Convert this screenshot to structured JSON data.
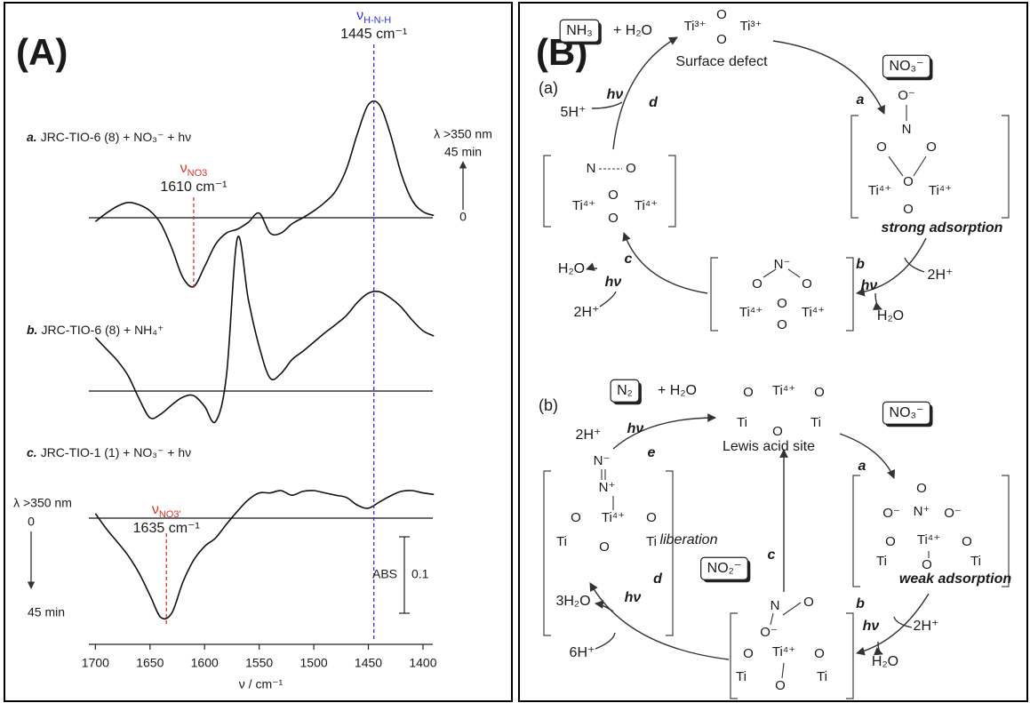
{
  "panel_labels": {
    "a": "(A)",
    "b": "(B)"
  },
  "chart_data": {
    "type": "line",
    "x": [
      1700,
      1690,
      1680,
      1670,
      1660,
      1650,
      1640,
      1630,
      1620,
      1610,
      1600,
      1590,
      1580,
      1570,
      1560,
      1550,
      1540,
      1530,
      1520,
      1510,
      1500,
      1490,
      1480,
      1470,
      1460,
      1450,
      1440,
      1430,
      1420,
      1410,
      1400,
      1390
    ],
    "xlim": [
      1706,
      1391
    ],
    "xticks": [
      1700,
      1650,
      1600,
      1550,
      1500,
      1450,
      1400
    ],
    "xlabel": "ν / cm⁻¹",
    "series": [
      {
        "letter": "a.",
        "name": "JRC-TIO-6 (8) + NO₃⁻ + hν",
        "color": "#111111",
        "values": [
          -0.005,
          0.006,
          0.015,
          0.02,
          0.017,
          0.009,
          -0.008,
          -0.04,
          -0.078,
          -0.09,
          -0.064,
          -0.035,
          -0.02,
          -0.015,
          -0.006,
          0.006,
          -0.02,
          -0.02,
          -0.008,
          0,
          0.009,
          0.02,
          0.035,
          0.064,
          0.11,
          0.148,
          0.148,
          0.11,
          0.058,
          0.023,
          0.008,
          0.003
        ]
      },
      {
        "letter": "b.",
        "name": "JRC-TIO-6 (8) + NH₄⁺",
        "color": "#111111",
        "values": [
          0.07,
          0.055,
          0.04,
          0.02,
          -0.01,
          -0.035,
          -0.03,
          -0.018,
          -0.008,
          -0.006,
          -0.02,
          -0.04,
          0.02,
          0.2,
          0.12,
          0.058,
          0.017,
          0.023,
          0.041,
          0.052,
          0.064,
          0.076,
          0.087,
          0.099,
          0.116,
          0.128,
          0.13,
          0.122,
          0.11,
          0.093,
          0.079,
          0.072
        ]
      },
      {
        "letter": "c.",
        "name": "JRC-TIO-1 (1) + NO₃⁻ + hν",
        "color": "#111111",
        "values": [
          0.006,
          -0.014,
          -0.031,
          -0.049,
          -0.072,
          -0.101,
          -0.13,
          -0.124,
          -0.084,
          -0.055,
          -0.037,
          -0.026,
          -0.008,
          0.009,
          0.024,
          0.033,
          0.033,
          0.036,
          0.03,
          0.035,
          0.036,
          0.033,
          0.03,
          0.027,
          0.017,
          0.013,
          0.021,
          0.029,
          0.035,
          0.036,
          0.033,
          0.031
        ]
      }
    ],
    "markers": [
      {
        "symbol": "ν",
        "sub": "NO3",
        "text": "1610 cm⁻¹",
        "value": 1610,
        "color": "#e0302a"
      },
      {
        "symbol": "ν",
        "sub": "NO3'",
        "text": "1635 cm⁻¹",
        "value": 1635,
        "color": "#e0302a"
      },
      {
        "symbol": "ν",
        "sub": "H-N-H",
        "text": "1445 cm⁻¹",
        "value": 1445,
        "color": "#3535d8"
      }
    ],
    "scale_bar": {
      "label": "ABS",
      "value": 0.1
    },
    "time_arrows": [
      {
        "lambda": "λ >350 nm",
        "time": "45 min",
        "start": "0"
      },
      {
        "lambda": "λ >350 nm",
        "time": "45 min",
        "start": "0"
      }
    ]
  },
  "panel_b": {
    "cycle_a": {
      "label": "(a)",
      "product": "NH₃",
      "product_rest": "+ H₂O",
      "reactant": "NO₃⁻",
      "site": {
        "atoms": [
          "Ti³⁺",
          "O",
          "O",
          "Ti³⁺"
        ],
        "label": "Surface defect"
      },
      "intermediate_1": {
        "atoms": [
          "O⁻",
          "N",
          "O",
          "O",
          "Ti⁴⁺",
          "O",
          "O",
          "Ti⁴⁺"
        ],
        "label": "strong adsorption"
      },
      "intermediate_2": {
        "atoms": [
          "N⁻",
          "O",
          "O",
          "Ti⁴⁺",
          "O",
          "O",
          "Ti⁴⁺"
        ]
      },
      "intermediate_3": {
        "atoms": [
          "N",
          "O",
          "Ti⁴⁺",
          "O",
          "O",
          "Ti⁴⁺"
        ]
      },
      "steps": [
        "a",
        "b",
        "c",
        "d"
      ],
      "light": [
        "hν",
        "hν",
        "hν"
      ],
      "reagents": [
        "2H⁺",
        "H₂O",
        "H₂O",
        "2H⁺",
        "5H⁺"
      ]
    },
    "cycle_b": {
      "label": "(b)",
      "product": "N₂",
      "product_rest": "+ H₂O",
      "reactant": "NO₃⁻",
      "site": {
        "atoms": [
          "O",
          "Ti⁴⁺",
          "O",
          "Ti",
          "O",
          "Ti"
        ],
        "label": "Lewis acid site"
      },
      "intermediate_1": {
        "atoms": [
          "O",
          "O⁻",
          "N⁺",
          "O⁻",
          "O",
          "Ti⁴⁺",
          "O",
          "Ti",
          "O",
          "Ti"
        ],
        "label": "weak adsorption"
      },
      "intermediate_2": {
        "atoms": [
          "N",
          "O",
          "O⁻",
          "O",
          "Ti⁴⁺",
          "O",
          "Ti",
          "O",
          "Ti"
        ]
      },
      "intermediate_3": {
        "atoms": [
          "N⁻",
          "N⁺",
          "O",
          "Ti⁴⁺",
          "O",
          "Ti",
          "O",
          "Ti"
        ]
      },
      "released": "NO₂⁻",
      "release_label": "liberation",
      "steps": [
        "a",
        "b",
        "c",
        "d",
        "e"
      ],
      "light": [
        "hν",
        "hν",
        "hν"
      ],
      "reagents": [
        "2H⁺",
        "H₂O",
        "3H₂O",
        "6H⁺",
        "2H⁺"
      ]
    }
  }
}
